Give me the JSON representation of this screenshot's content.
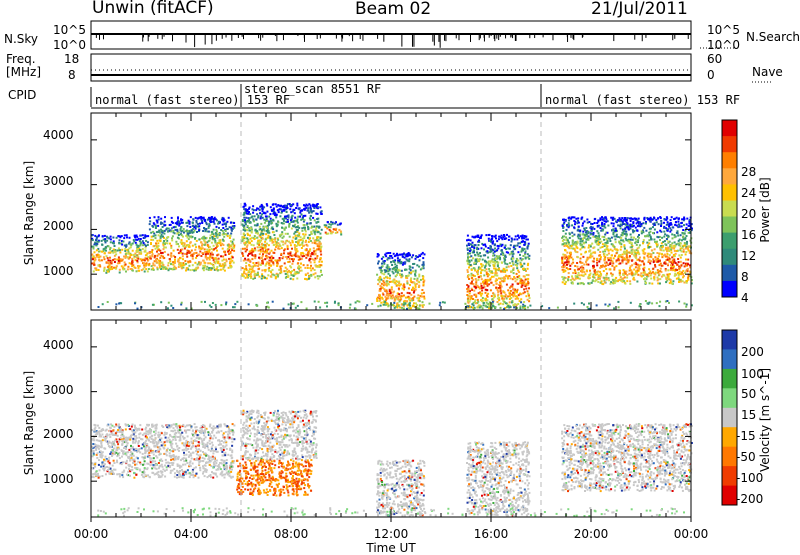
{
  "header": {
    "station": "Unwin (fitACF)",
    "beam": "Beam 02",
    "date": "21/Jul/2011"
  },
  "left_labels": {
    "nsky": "N.Sky",
    "freq": "Freq.",
    "freq_unit": "[MHz]",
    "cpid": "CPID"
  },
  "right_labels": {
    "nsearch": "N.Search",
    "nave": "Nave"
  },
  "noise_axis": {
    "left_ticks": [
      "10^5",
      "10^0"
    ],
    "right_ticks": [
      "10^5",
      "10^0"
    ]
  },
  "freq_axis": {
    "left_ticks": [
      "18",
      "8"
    ],
    "right_ticks": [
      "60",
      "0"
    ]
  },
  "cpid_segments": [
    {
      "label": "normal (fast stereo) 153 RF",
      "start_hour": 0,
      "end_hour": 6
    },
    {
      "label": "stereo_scan 8551 RF",
      "start_hour": 6,
      "end_hour": 18
    },
    {
      "label": "normal (fast stereo) 153 RF",
      "start_hour": 18,
      "end_hour": 24
    }
  ],
  "chart_data": [
    {
      "type": "heatmap",
      "name": "power",
      "ylabel": "Slant Range [km]",
      "yticks": [
        "4000",
        "3000",
        "2000",
        "1000"
      ],
      "ylim": [
        200,
        4600
      ],
      "xlim": [
        0,
        24
      ],
      "colorbar_label": "Power [dB]",
      "colorbar_ticks": [
        "28",
        "24",
        "20",
        "16",
        "12",
        "8",
        "4"
      ],
      "colorbar_colors": [
        "#e00000",
        "#f03a00",
        "#ff7f00",
        "#ffa83c",
        "#ffc000",
        "#c8dc50",
        "#7ec35a",
        "#3c9e6e",
        "#2f8a7a",
        "#1e5aa8",
        "#0000ff"
      ],
      "scatter_regions": [
        {
          "hours": [
            0,
            2.3
          ],
          "range_km": [
            1050,
            1900
          ]
        },
        {
          "hours": [
            2.3,
            5.7
          ],
          "range_km": [
            1100,
            2300
          ]
        },
        {
          "hours": [
            6.0,
            9.2
          ],
          "range_km": [
            900,
            2600
          ]
        },
        {
          "hours": [
            9.3,
            10.0
          ],
          "range_km": [
            1900,
            2200
          ]
        },
        {
          "hours": [
            11.4,
            13.3
          ],
          "range_km": [
            250,
            1500
          ]
        },
        {
          "hours": [
            15.0,
            17.5
          ],
          "range_km": [
            250,
            1900
          ]
        },
        {
          "hours": [
            18.8,
            24
          ],
          "range_km": [
            800,
            2300
          ]
        }
      ]
    },
    {
      "type": "heatmap",
      "name": "velocity",
      "ylabel": "Slant Range [km]",
      "yticks": [
        "4000",
        "3000",
        "2000",
        "1000"
      ],
      "ylim": [
        200,
        4600
      ],
      "xlim": [
        0,
        24
      ],
      "colorbar_label": "Velocity [m s^-1]",
      "colorbar_ticks": [
        "200",
        "100",
        "50",
        "15",
        "-15",
        "-50",
        "-100",
        "-200"
      ],
      "colorbar_colors": [
        "#1e3aa8",
        "#2f6fc0",
        "#3caa3c",
        "#7ed87e",
        "#c8c8c8",
        "#ffa800",
        "#ff7800",
        "#f03c00",
        "#e00000"
      ],
      "scatter_regions": [
        {
          "hours": [
            0,
            5.7
          ],
          "range_km": [
            1100,
            2300
          ]
        },
        {
          "hours": [
            5.8,
            8.8
          ],
          "range_km": [
            700,
            1500
          ]
        },
        {
          "hours": [
            6.0,
            9.0
          ],
          "range_km": [
            1500,
            2600
          ]
        },
        {
          "hours": [
            11.4,
            13.3
          ],
          "range_km": [
            250,
            1500
          ]
        },
        {
          "hours": [
            15.0,
            17.5
          ],
          "range_km": [
            250,
            1900
          ]
        },
        {
          "hours": [
            18.8,
            24
          ],
          "range_km": [
            800,
            2300
          ]
        }
      ]
    }
  ],
  "xaxis": {
    "ticks": [
      "00:00",
      "04:00",
      "08:00",
      "12:00",
      "16:00",
      "20:00",
      "00:00"
    ],
    "label": "Time UT"
  }
}
